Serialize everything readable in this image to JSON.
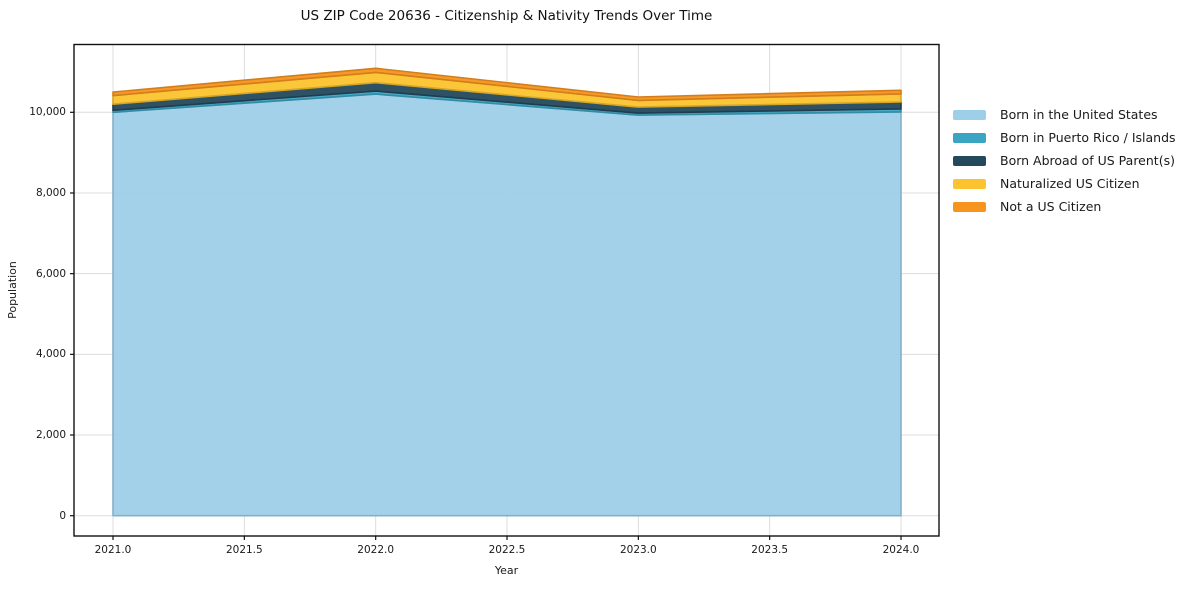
{
  "chart_data": {
    "type": "area",
    "stacked": true,
    "title": "US ZIP Code 20636 - Citizenship & Nativity Trends Over Time",
    "xlabel": "Year",
    "ylabel": "Population",
    "x": [
      2021,
      2022,
      2023,
      2024
    ],
    "x_ticks": [
      2021.0,
      2021.5,
      2022.0,
      2022.5,
      2023.0,
      2023.5,
      2024.0
    ],
    "y_ticks": [
      0,
      2000,
      4000,
      6000,
      8000,
      10000
    ],
    "xlim": [
      2020.85,
      2024.15
    ],
    "ylim": [
      -550,
      11700
    ],
    "grid": true,
    "legend_position": "right-outside",
    "background_color": "#ffffff",
    "series": [
      {
        "name": "Born in the United States",
        "color": "#9ECFE8",
        "values": [
          10000,
          10450,
          9930,
          10010
        ]
      },
      {
        "name": "Born in Puerto Rico / Islands",
        "color": "#3AA5C2",
        "values": [
          50,
          75,
          50,
          75
        ]
      },
      {
        "name": "Born Abroad of US Parent(s)",
        "color": "#24485C",
        "values": [
          150,
          210,
          150,
          170
        ]
      },
      {
        "name": "Naturalized US Citizen",
        "color": "#FCC32E",
        "values": [
          215,
          255,
          165,
          200
        ]
      },
      {
        "name": "Not a US Citizen",
        "color": "#F7941E",
        "values": [
          85,
          100,
          85,
          90
        ]
      }
    ],
    "totals": [
      10500,
      11090,
      10380,
      10545
    ]
  }
}
